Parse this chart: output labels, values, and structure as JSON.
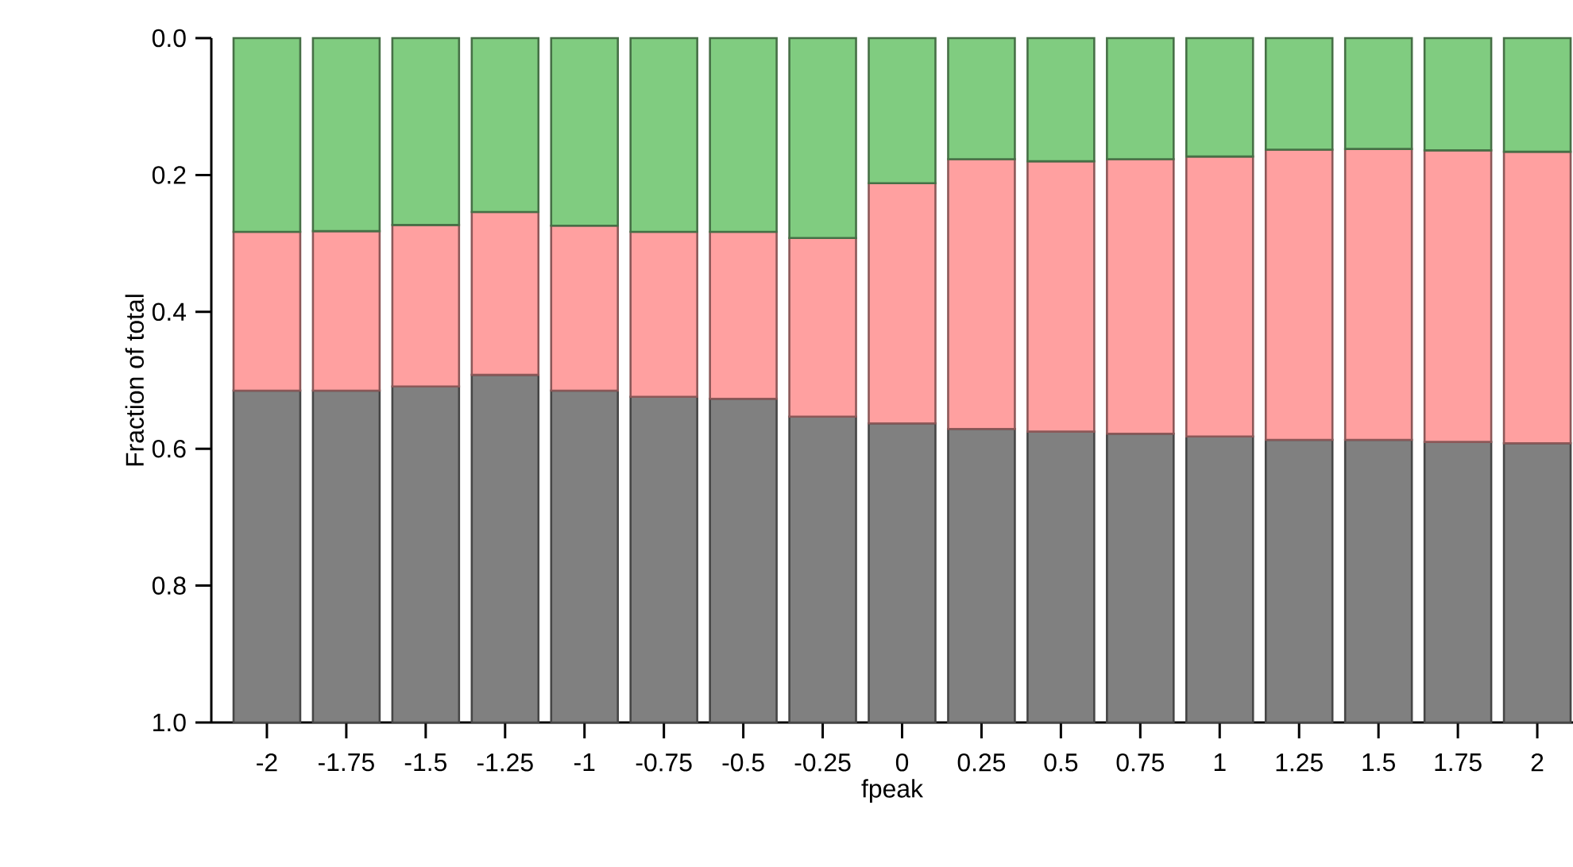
{
  "chart_data": {
    "type": "bar",
    "stacked": true,
    "xlabel": "fpeak",
    "ylabel": "Fraction of total",
    "categories": [
      "-2",
      "-1.75",
      "-1.5",
      "-1.25",
      "-1",
      "-0.75",
      "-0.5",
      "-0.25",
      "0",
      "0.25",
      "0.5",
      "0.75",
      "1",
      "1.25",
      "1.5",
      "1.75",
      "2"
    ],
    "series": [
      {
        "color": "#80cc80",
        "values": [
          0.283,
          0.282,
          0.273,
          0.254,
          0.274,
          0.283,
          0.283,
          0.292,
          0.212,
          0.177,
          0.18,
          0.177,
          0.173,
          0.163,
          0.162,
          0.164,
          0.166
        ]
      },
      {
        "color": "#ffa0a0",
        "values": [
          0.232,
          0.233,
          0.236,
          0.238,
          0.241,
          0.241,
          0.244,
          0.261,
          0.351,
          0.394,
          0.395,
          0.401,
          0.409,
          0.424,
          0.425,
          0.426,
          0.426
        ]
      },
      {
        "color": "#808080",
        "values": [
          0.485,
          0.485,
          0.491,
          0.508,
          0.485,
          0.476,
          0.473,
          0.447,
          0.437,
          0.429,
          0.425,
          0.422,
          0.418,
          0.413,
          0.413,
          0.41,
          0.408
        ]
      }
    ],
    "ylim": [
      1,
      0
    ],
    "yticks": [
      {
        "value": 0,
        "label": "0.0"
      },
      {
        "value": 0.2,
        "label": "0.2"
      },
      {
        "value": 0.4,
        "label": "0.4"
      },
      {
        "value": 0.6,
        "label": "0.6"
      },
      {
        "value": 0.8,
        "label": "0.8"
      },
      {
        "value": 1,
        "label": "1.0"
      }
    ]
  }
}
